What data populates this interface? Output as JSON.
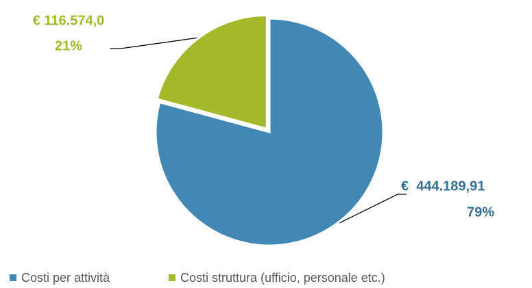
{
  "chart_data": {
    "type": "pie",
    "categories": [
      "Costi per attività",
      "Costi struttura (ufficio, personale etc.)"
    ],
    "values": [
      444189.91,
      116574.0
    ],
    "value_labels": [
      "€  444.189,91",
      "€ 116.574,0"
    ],
    "percentages": [
      79,
      21
    ],
    "percentage_labels": [
      "79%",
      "21%"
    ],
    "colors": [
      "#4189b4",
      "#a5b829"
    ],
    "legend": "bottom"
  }
}
